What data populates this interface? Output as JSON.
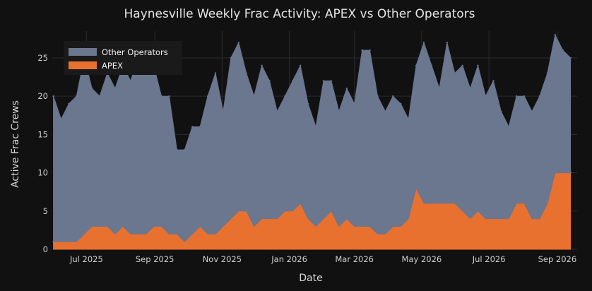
{
  "chart_data": {
    "type": "area",
    "stacked": true,
    "title": "Haynesville Weekly Frac Activity: APEX vs Other Operators",
    "xlabel": "Date",
    "ylabel": "Active Frac Crews",
    "ylim": [
      0,
      28.5
    ],
    "yticks": [
      0,
      5,
      10,
      15,
      20,
      25
    ],
    "xlim": [
      "2025-05-31",
      "2026-09-19"
    ],
    "xticks": [
      {
        "label": "Jul 2025",
        "date": "2025-07-01"
      },
      {
        "label": "Sep 2025",
        "date": "2025-09-01"
      },
      {
        "label": "Nov 2025",
        "date": "2025-11-01"
      },
      {
        "label": "Jan 2026",
        "date": "2026-01-01"
      },
      {
        "label": "Mar 2026",
        "date": "2026-03-01"
      },
      {
        "label": "May 2026",
        "date": "2026-05-01"
      },
      {
        "label": "Jul 2026",
        "date": "2026-07-01"
      },
      {
        "label": "Sep 2026",
        "date": "2026-09-01"
      }
    ],
    "grid": true,
    "legend_position": "top-left",
    "series": [
      {
        "name": "APEX",
        "color": "#e8712f",
        "points": [
          [
            "2025-06-01",
            1
          ],
          [
            "2025-06-08",
            1
          ],
          [
            "2025-06-15",
            1
          ],
          [
            "2025-06-22",
            1
          ],
          [
            "2025-06-29",
            2
          ],
          [
            "2025-07-06",
            3
          ],
          [
            "2025-07-13",
            3
          ],
          [
            "2025-07-20",
            3
          ],
          [
            "2025-07-27",
            2
          ],
          [
            "2025-08-03",
            3
          ],
          [
            "2025-08-10",
            2
          ],
          [
            "2025-08-17",
            2
          ],
          [
            "2025-08-24",
            2
          ],
          [
            "2025-08-31",
            3
          ],
          [
            "2025-09-07",
            3
          ],
          [
            "2025-09-14",
            2
          ],
          [
            "2025-09-21",
            2
          ],
          [
            "2025-09-28",
            1
          ],
          [
            "2025-10-05",
            2
          ],
          [
            "2025-10-12",
            3
          ],
          [
            "2025-10-19",
            2
          ],
          [
            "2025-10-26",
            2
          ],
          [
            "2025-11-02",
            3
          ],
          [
            "2025-11-09",
            4
          ],
          [
            "2025-11-16",
            5
          ],
          [
            "2025-11-23",
            5
          ],
          [
            "2025-11-30",
            3
          ],
          [
            "2025-12-07",
            4
          ],
          [
            "2025-12-14",
            4
          ],
          [
            "2025-12-21",
            4
          ],
          [
            "2025-12-28",
            5
          ],
          [
            "2026-01-04",
            5
          ],
          [
            "2026-01-11",
            6
          ],
          [
            "2026-01-18",
            4
          ],
          [
            "2026-01-25",
            3
          ],
          [
            "2026-02-01",
            4
          ],
          [
            "2026-02-08",
            5
          ],
          [
            "2026-02-15",
            3
          ],
          [
            "2026-02-22",
            4
          ],
          [
            "2026-03-01",
            3
          ],
          [
            "2026-03-08",
            3
          ],
          [
            "2026-03-15",
            3
          ],
          [
            "2026-03-22",
            2
          ],
          [
            "2026-03-29",
            2
          ],
          [
            "2026-04-05",
            3
          ],
          [
            "2026-04-12",
            3
          ],
          [
            "2026-04-19",
            4
          ],
          [
            "2026-04-26",
            8
          ],
          [
            "2026-05-03",
            6
          ],
          [
            "2026-05-10",
            6
          ],
          [
            "2026-05-17",
            6
          ],
          [
            "2026-05-24",
            6
          ],
          [
            "2026-05-31",
            6
          ],
          [
            "2026-06-07",
            5
          ],
          [
            "2026-06-14",
            4
          ],
          [
            "2026-06-21",
            5
          ],
          [
            "2026-06-28",
            4
          ],
          [
            "2026-07-05",
            4
          ],
          [
            "2026-07-12",
            4
          ],
          [
            "2026-07-19",
            4
          ],
          [
            "2026-07-26",
            6
          ],
          [
            "2026-08-02",
            6
          ],
          [
            "2026-08-09",
            4
          ],
          [
            "2026-08-16",
            4
          ],
          [
            "2026-08-23",
            6
          ],
          [
            "2026-08-30",
            10
          ],
          [
            "2026-09-06",
            10
          ],
          [
            "2026-09-13",
            10
          ]
        ]
      },
      {
        "name": "Other Operators",
        "color": "#6b768f",
        "points": [
          [
            "2025-06-01",
            19
          ],
          [
            "2025-06-08",
            16
          ],
          [
            "2025-06-15",
            18
          ],
          [
            "2025-06-22",
            19
          ],
          [
            "2025-06-29",
            23
          ],
          [
            "2025-07-06",
            18
          ],
          [
            "2025-07-13",
            17
          ],
          [
            "2025-07-20",
            20
          ],
          [
            "2025-07-27",
            19
          ],
          [
            "2025-08-03",
            21
          ],
          [
            "2025-08-10",
            20
          ],
          [
            "2025-08-17",
            23
          ],
          [
            "2025-08-24",
            22
          ],
          [
            "2025-08-31",
            21
          ],
          [
            "2025-09-07",
            17
          ],
          [
            "2025-09-14",
            18
          ],
          [
            "2025-09-21",
            11
          ],
          [
            "2025-09-28",
            12
          ],
          [
            "2025-10-05",
            14
          ],
          [
            "2025-10-12",
            13
          ],
          [
            "2025-10-19",
            18
          ],
          [
            "2025-10-26",
            21
          ],
          [
            "2025-11-02",
            15
          ],
          [
            "2025-11-09",
            21
          ],
          [
            "2025-11-16",
            22
          ],
          [
            "2025-11-23",
            18
          ],
          [
            "2025-11-30",
            17
          ],
          [
            "2025-12-07",
            20
          ],
          [
            "2025-12-14",
            18
          ],
          [
            "2025-12-21",
            14
          ],
          [
            "2025-12-28",
            15
          ],
          [
            "2026-01-04",
            17
          ],
          [
            "2026-01-11",
            18
          ],
          [
            "2026-01-18",
            15
          ],
          [
            "2026-01-25",
            13
          ],
          [
            "2026-02-01",
            18
          ],
          [
            "2026-02-08",
            17
          ],
          [
            "2026-02-15",
            15
          ],
          [
            "2026-02-22",
            17
          ],
          [
            "2026-03-01",
            16
          ],
          [
            "2026-03-08",
            23
          ],
          [
            "2026-03-15",
            23
          ],
          [
            "2026-03-22",
            18
          ],
          [
            "2026-03-29",
            16
          ],
          [
            "2026-04-05",
            17
          ],
          [
            "2026-04-12",
            16
          ],
          [
            "2026-04-19",
            13
          ],
          [
            "2026-04-26",
            16
          ],
          [
            "2026-05-03",
            21
          ],
          [
            "2026-05-10",
            18
          ],
          [
            "2026-05-17",
            15
          ],
          [
            "2026-05-24",
            21
          ],
          [
            "2026-05-31",
            17
          ],
          [
            "2026-06-07",
            19
          ],
          [
            "2026-06-14",
            17
          ],
          [
            "2026-06-21",
            19
          ],
          [
            "2026-06-28",
            16
          ],
          [
            "2026-07-05",
            18
          ],
          [
            "2026-07-12",
            14
          ],
          [
            "2026-07-19",
            12
          ],
          [
            "2026-07-26",
            14
          ],
          [
            "2026-08-02",
            14
          ],
          [
            "2026-08-09",
            14
          ],
          [
            "2026-08-16",
            16
          ],
          [
            "2026-08-23",
            17
          ],
          [
            "2026-08-30",
            18
          ],
          [
            "2026-09-06",
            16
          ],
          [
            "2026-09-13",
            15
          ]
        ]
      }
    ]
  }
}
